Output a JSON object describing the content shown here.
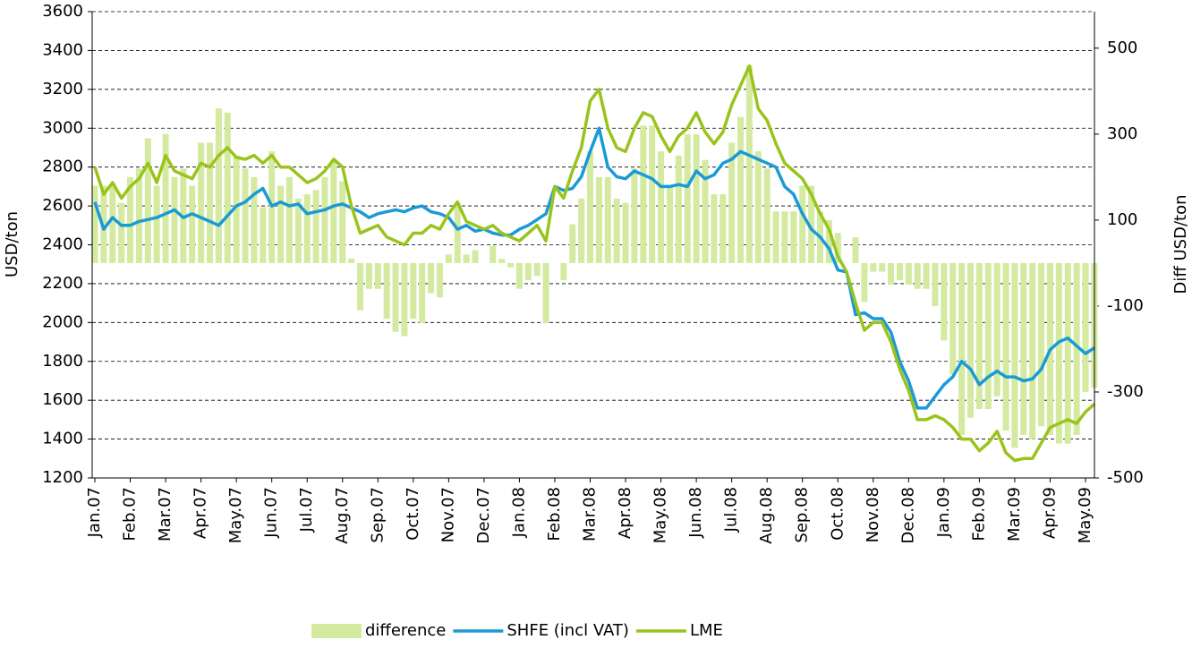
{
  "chart_data": {
    "type": "combo",
    "y_label": "USD/ton",
    "y2_label": "Diff USD/ton",
    "categories": [
      "Jan.07",
      null,
      null,
      null,
      "Feb.07",
      null,
      null,
      null,
      "Mar.07",
      null,
      null,
      null,
      "Apr.07",
      null,
      null,
      null,
      "May.07",
      null,
      null,
      null,
      "Jun.07",
      null,
      null,
      null,
      "Jul.07",
      null,
      null,
      null,
      "Aug.07",
      null,
      null,
      null,
      "Sep.07",
      null,
      null,
      null,
      "Oct.07",
      null,
      null,
      null,
      "Nov.07",
      null,
      null,
      null,
      "Dec.07",
      null,
      null,
      null,
      "Jan.08",
      null,
      null,
      null,
      "Feb.08",
      null,
      null,
      null,
      "Mar.08",
      null,
      null,
      null,
      "Apr.08",
      null,
      null,
      null,
      "May.08",
      null,
      null,
      null,
      "Jun.08",
      null,
      null,
      null,
      "Jul.08",
      null,
      null,
      null,
      "Aug.08",
      null,
      null,
      null,
      "Sep.08",
      null,
      null,
      null,
      "Oct.08",
      null,
      null,
      null,
      "Nov.08",
      null,
      null,
      null,
      "Dec.08",
      null,
      null,
      null,
      "Jan.09",
      null,
      null,
      null,
      "Feb.09",
      null,
      null,
      null,
      "Mar.09",
      null,
      null,
      null,
      "Apr.09",
      null,
      null,
      null,
      "May.09",
      null
    ],
    "series": [
      {
        "name": "difference",
        "type": "bar",
        "axis": "y2",
        "color": "#d3eaa0",
        "values": [
          180,
          180,
          180,
          140,
          200,
          220,
          290,
          180,
          300,
          200,
          220,
          180,
          280,
          280,
          360,
          350,
          250,
          220,
          200,
          130,
          260,
          180,
          200,
          150,
          160,
          170,
          200,
          240,
          190,
          10,
          -110,
          -60,
          -60,
          -130,
          -160,
          -170,
          -130,
          -140,
          -70,
          -80,
          20,
          140,
          20,
          30,
          0,
          40,
          10,
          -10,
          -60,
          -40,
          -30,
          -140,
          0,
          -40,
          90,
          150,
          260,
          200,
          200,
          150,
          140,
          220,
          320,
          320,
          260,
          180,
          250,
          300,
          300,
          240,
          160,
          160,
          280,
          340,
          460,
          260,
          220,
          120,
          120,
          120,
          180,
          180,
          120,
          100,
          70,
          0,
          60,
          -90,
          -20,
          -20,
          -50,
          -40,
          -50,
          -60,
          -60,
          -100,
          -180,
          -260,
          -400,
          -360,
          -340,
          -340,
          -310,
          -390,
          -430,
          -400,
          -410,
          -380,
          -400,
          -420,
          -420,
          -400,
          -300,
          -290
        ]
      },
      {
        "name": "SHFE (incl VAT)",
        "type": "line",
        "axis": "y",
        "color": "#1a9ad6",
        "values": [
          2620,
          2480,
          2540,
          2500,
          2500,
          2520,
          2530,
          2540,
          2560,
          2580,
          2540,
          2560,
          2540,
          2520,
          2500,
          2550,
          2600,
          2620,
          2660,
          2690,
          2600,
          2620,
          2600,
          2610,
          2560,
          2570,
          2580,
          2600,
          2610,
          2590,
          2570,
          2540,
          2560,
          2570,
          2580,
          2570,
          2590,
          2600,
          2570,
          2560,
          2540,
          2480,
          2500,
          2470,
          2480,
          2460,
          2450,
          2450,
          2480,
          2500,
          2530,
          2560,
          2700,
          2680,
          2690,
          2750,
          2880,
          3000,
          2800,
          2750,
          2740,
          2780,
          2760,
          2740,
          2700,
          2700,
          2710,
          2700,
          2780,
          2740,
          2760,
          2820,
          2840,
          2880,
          2860,
          2840,
          2820,
          2800,
          2700,
          2660,
          2560,
          2480,
          2440,
          2380,
          2270,
          2260,
          2040,
          2050,
          2020,
          2020,
          1950,
          1800,
          1700,
          1560,
          1560,
          1620,
          1680,
          1720,
          1800,
          1760,
          1680,
          1720,
          1750,
          1720,
          1720,
          1700,
          1710,
          1760,
          1860,
          1900,
          1920,
          1880,
          1840,
          1870
        ]
      },
      {
        "name": "LME",
        "type": "line",
        "axis": "y",
        "color": "#9ac31c",
        "values": [
          2800,
          2660,
          2720,
          2640,
          2700,
          2740,
          2820,
          2720,
          2860,
          2780,
          2760,
          2740,
          2820,
          2800,
          2860,
          2900,
          2850,
          2840,
          2860,
          2820,
          2860,
          2800,
          2800,
          2760,
          2720,
          2740,
          2780,
          2840,
          2800,
          2600,
          2460,
          2480,
          2500,
          2440,
          2420,
          2400,
          2460,
          2460,
          2500,
          2480,
          2560,
          2620,
          2520,
          2500,
          2480,
          2500,
          2460,
          2440,
          2420,
          2460,
          2500,
          2420,
          2700,
          2640,
          2780,
          2900,
          3140,
          3200,
          3000,
          2900,
          2880,
          3000,
          3080,
          3060,
          2960,
          2880,
          2960,
          3000,
          3080,
          2980,
          2920,
          2980,
          3120,
          3220,
          3320,
          3100,
          3040,
          2920,
          2820,
          2780,
          2740,
          2660,
          2560,
          2480,
          2340,
          2260,
          2100,
          1960,
          2000,
          2000,
          1900,
          1760,
          1650,
          1500,
          1500,
          1520,
          1500,
          1460,
          1400,
          1400,
          1340,
          1380,
          1440,
          1330,
          1290,
          1300,
          1300,
          1380,
          1460,
          1480,
          1500,
          1480,
          1540,
          1580
        ]
      }
    ],
    "ylim": [
      1200,
      3600
    ],
    "yticks": [
      1200,
      1400,
      1600,
      1800,
      2000,
      2200,
      2400,
      2600,
      2800,
      3000,
      3200,
      3400,
      3600
    ],
    "y2lim": [
      -500,
      585
    ],
    "y2ticks": [
      -500,
      -300,
      -100,
      100,
      300,
      500
    ],
    "grid": true
  }
}
